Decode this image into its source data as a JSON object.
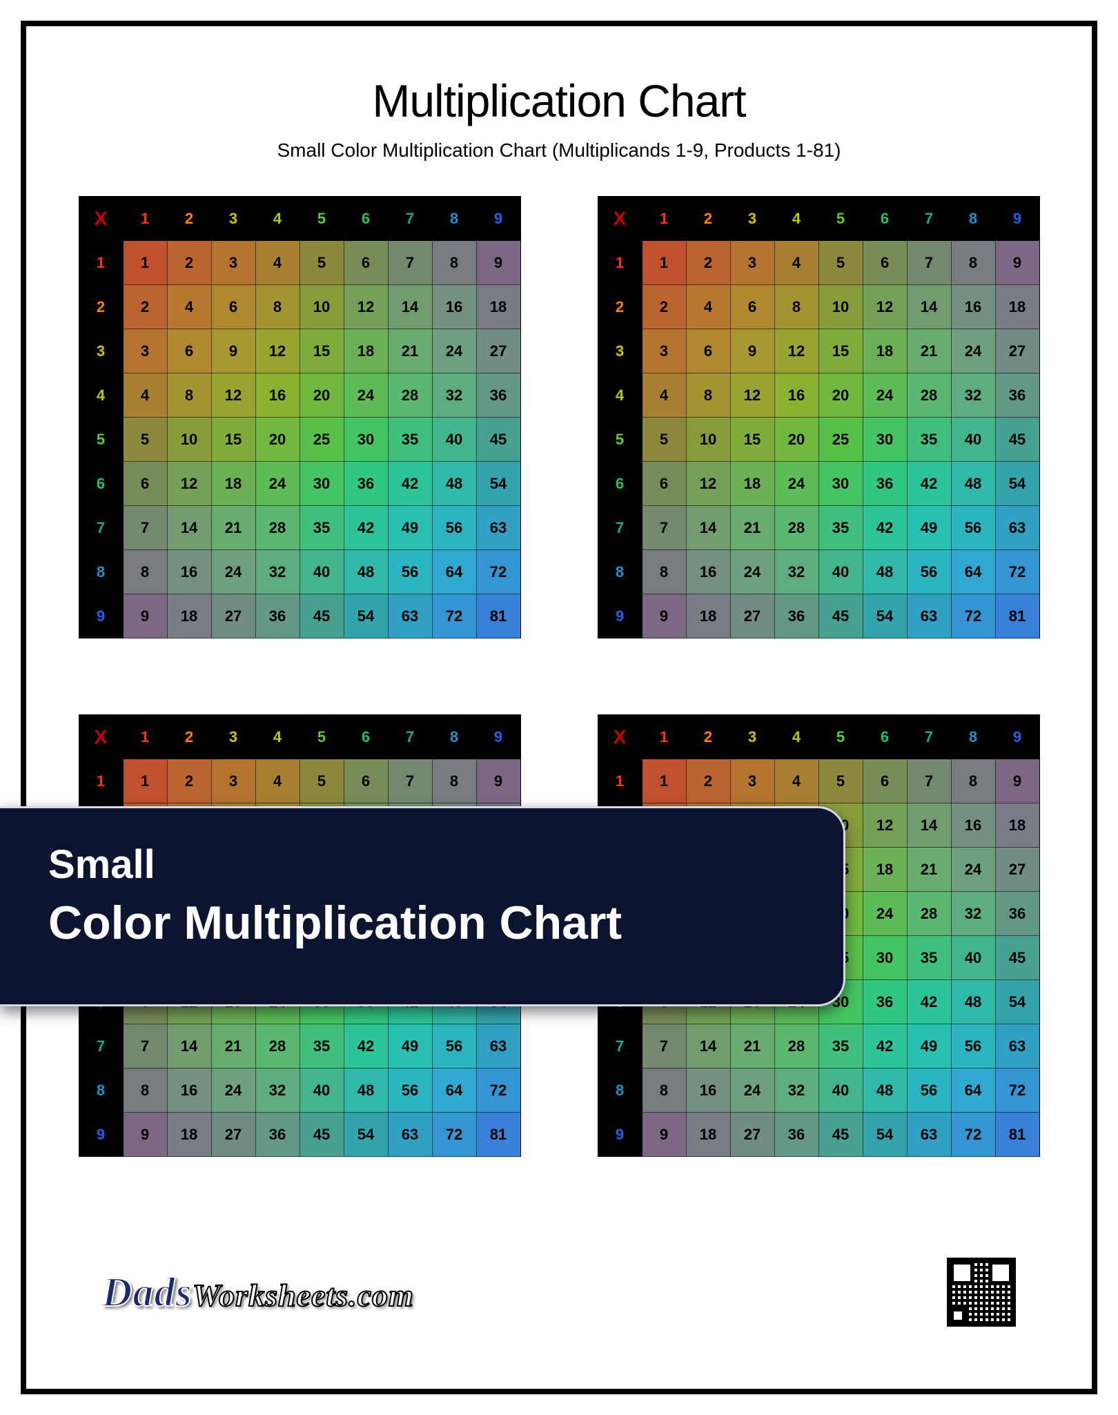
{
  "title": "Multiplication Chart",
  "subtitle": "Small Color Multiplication Chart (Multiplicands 1-9, Products 1-81)",
  "overlay": {
    "line1": "Small",
    "line2": "Color Multiplication Chart"
  },
  "logo": {
    "part1": "Dads",
    "part2": "Worksheets.com"
  },
  "chart": {
    "type": "multiplication-table",
    "corner_symbol": "X",
    "corner_color": "#cc0000",
    "size": 9,
    "headers": [
      1,
      2,
      3,
      4,
      5,
      6,
      7,
      8,
      9
    ],
    "header_bg": "#000000",
    "header_colors": [
      "#ff3300",
      "#ff8000",
      "#d6c000",
      "#a8d000",
      "#58cc33",
      "#20c060",
      "#1aa898",
      "#2090c8",
      "#2060e8"
    ],
    "rows": [
      [
        1,
        2,
        3,
        4,
        5,
        6,
        7,
        8,
        9
      ],
      [
        2,
        4,
        6,
        8,
        10,
        12,
        14,
        16,
        18
      ],
      [
        3,
        6,
        9,
        12,
        15,
        18,
        21,
        24,
        27
      ],
      [
        4,
        8,
        12,
        16,
        20,
        24,
        28,
        32,
        36
      ],
      [
        5,
        10,
        15,
        20,
        25,
        30,
        35,
        40,
        45
      ],
      [
        6,
        12,
        18,
        24,
        30,
        36,
        42,
        48,
        54
      ],
      [
        7,
        14,
        21,
        28,
        35,
        42,
        49,
        56,
        63
      ],
      [
        8,
        16,
        24,
        32,
        40,
        48,
        56,
        64,
        72
      ],
      [
        9,
        18,
        27,
        36,
        45,
        54,
        63,
        72,
        81
      ]
    ],
    "cell_colors_rainbow": [
      "#c05030",
      "#b87830",
      "#a89830",
      "#8cb030",
      "#58c048",
      "#30c880",
      "#28c0b0",
      "#30a8d0",
      "#3880d8"
    ],
    "cell_fontsize": 22,
    "cell_fontweight": "bold",
    "cell_text_color": "#000000",
    "grid_border_color": "rgba(0,0,0,0.55)",
    "copies": 4
  }
}
